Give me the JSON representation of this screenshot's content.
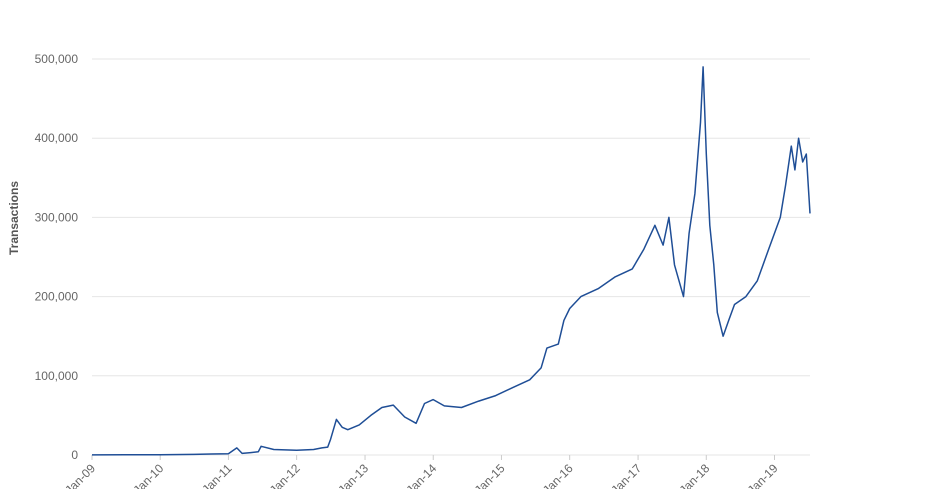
{
  "chart_data": {
    "type": "line",
    "title": "",
    "xlabel": "",
    "ylabel": "Transactions",
    "ylim": [
      0,
      500000
    ],
    "y_ticks": [
      0,
      100000,
      200000,
      300000,
      400000,
      500000
    ],
    "y_tick_labels": [
      "0",
      "100,000",
      "200,000",
      "300,000",
      "400,000",
      "500,000"
    ],
    "x_range": [
      "2009-01-01",
      "2019-07-10"
    ],
    "x_ticks": [
      "2009-01-01",
      "2010-01-01",
      "2011-01-01",
      "2012-01-01",
      "2013-01-01",
      "2014-01-01",
      "2015-01-01",
      "2016-01-01",
      "2017-01-01",
      "2018-01-01",
      "2019-01-01"
    ],
    "x_tick_labels": [
      "Jan-09",
      "Jan-10",
      "Jan-11",
      "Jan-12",
      "Jan-13",
      "Jan-14",
      "Jan-15",
      "Jan-16",
      "Jan-17",
      "Jan-18",
      "Jan-19"
    ],
    "grid": true,
    "legend": "none",
    "line_color": "#1f4e96",
    "series": [
      {
        "x": [
          "2009-01-01",
          "2009-07-01",
          "2010-01-01",
          "2010-07-01",
          "2010-10-01",
          "2011-01-01",
          "2011-02-15",
          "2011-03-15",
          "2011-05-01",
          "2011-06-10",
          "2011-06-25",
          "2011-09-01",
          "2012-01-01",
          "2012-04-01",
          "2012-05-15",
          "2012-06-15",
          "2012-07-01",
          "2012-08-01",
          "2012-09-01",
          "2012-10-01",
          "2012-12-01",
          "2013-02-01",
          "2013-04-01",
          "2013-06-01",
          "2013-08-01",
          "2013-10-01",
          "2013-11-15",
          "2014-01-01",
          "2014-03-01",
          "2014-06-01",
          "2014-09-01",
          "2014-12-01",
          "2015-03-01",
          "2015-06-01",
          "2015-08-01",
          "2015-09-01",
          "2015-11-01",
          "2015-12-01",
          "2016-01-01",
          "2016-03-01",
          "2016-06-01",
          "2016-09-01",
          "2016-12-01",
          "2017-02-01",
          "2017-04-01",
          "2017-05-15",
          "2017-06-15",
          "2017-07-15",
          "2017-09-01",
          "2017-10-01",
          "2017-11-01",
          "2017-12-01",
          "2017-12-15",
          "2018-01-01",
          "2018-01-20",
          "2018-02-10",
          "2018-03-01",
          "2018-04-01",
          "2018-05-01",
          "2018-06-01",
          "2018-08-01",
          "2018-10-01",
          "2018-12-01",
          "2019-01-01",
          "2019-02-01",
          "2019-03-01",
          "2019-04-01",
          "2019-04-20",
          "2019-05-10",
          "2019-06-01",
          "2019-06-20",
          "2019-07-10"
        ],
        "values": [
          100,
          200,
          300,
          700,
          1200,
          1500,
          9000,
          2000,
          3000,
          4000,
          11000,
          7000,
          6000,
          7000,
          9000,
          10000,
          20000,
          45000,
          35000,
          32000,
          38000,
          50000,
          60000,
          63000,
          48000,
          40000,
          65000,
          70000,
          62000,
          60000,
          68000,
          75000,
          85000,
          95000,
          110000,
          135000,
          140000,
          170000,
          185000,
          200000,
          210000,
          225000,
          235000,
          260000,
          290000,
          265000,
          300000,
          240000,
          200000,
          280000,
          330000,
          420000,
          490000,
          380000,
          290000,
          240000,
          180000,
          150000,
          170000,
          190000,
          200000,
          220000,
          260000,
          280000,
          300000,
          340000,
          390000,
          360000,
          400000,
          370000,
          380000,
          305000
        ]
      }
    ]
  }
}
